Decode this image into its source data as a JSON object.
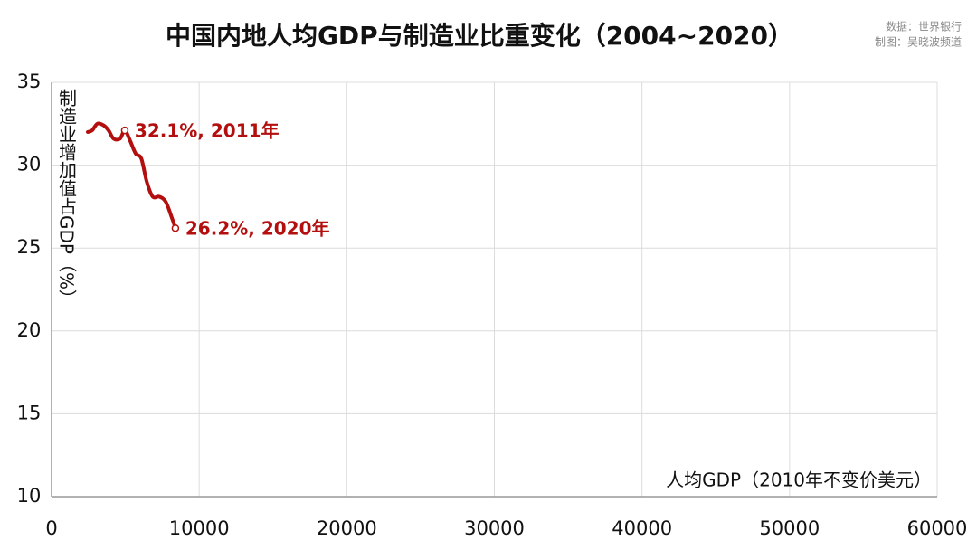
{
  "chart_data": {
    "type": "line",
    "title": "中国内地人均GDP与制造业比重变化（2004~2020）",
    "source": "数据：世界银行",
    "credit": "制图：吴晓波频道",
    "x_label": "人均GDP（2010年不变价美元）",
    "y_label": "制造业增加值占GDP（%）",
    "xlim": [
      0,
      60000
    ],
    "xticks": [
      0,
      10000,
      20000,
      30000,
      40000,
      50000,
      60000
    ],
    "ylim": [
      10,
      35
    ],
    "yticks": [
      10,
      15,
      20,
      25,
      30,
      35
    ],
    "grid": true,
    "series": [
      {
        "color": "#b30f0f",
        "x": [
          2450,
          2750,
          3100,
          3530,
          3860,
          4200,
          4640,
          4960,
          5310,
          5700,
          6080,
          6450,
          6850,
          7290,
          7730,
          8160,
          8390
        ],
        "values": [
          32.0,
          32.1,
          32.5,
          32.4,
          32.1,
          31.6,
          31.6,
          32.1,
          31.5,
          30.7,
          30.4,
          29.0,
          28.1,
          28.1,
          27.8,
          26.8,
          26.2
        ],
        "value_labels": [
          null,
          null,
          null,
          null,
          null,
          null,
          null,
          "32.1%, 2011年",
          null,
          null,
          null,
          null,
          null,
          null,
          null,
          null,
          "26.2%, 2020年"
        ]
      }
    ]
  }
}
